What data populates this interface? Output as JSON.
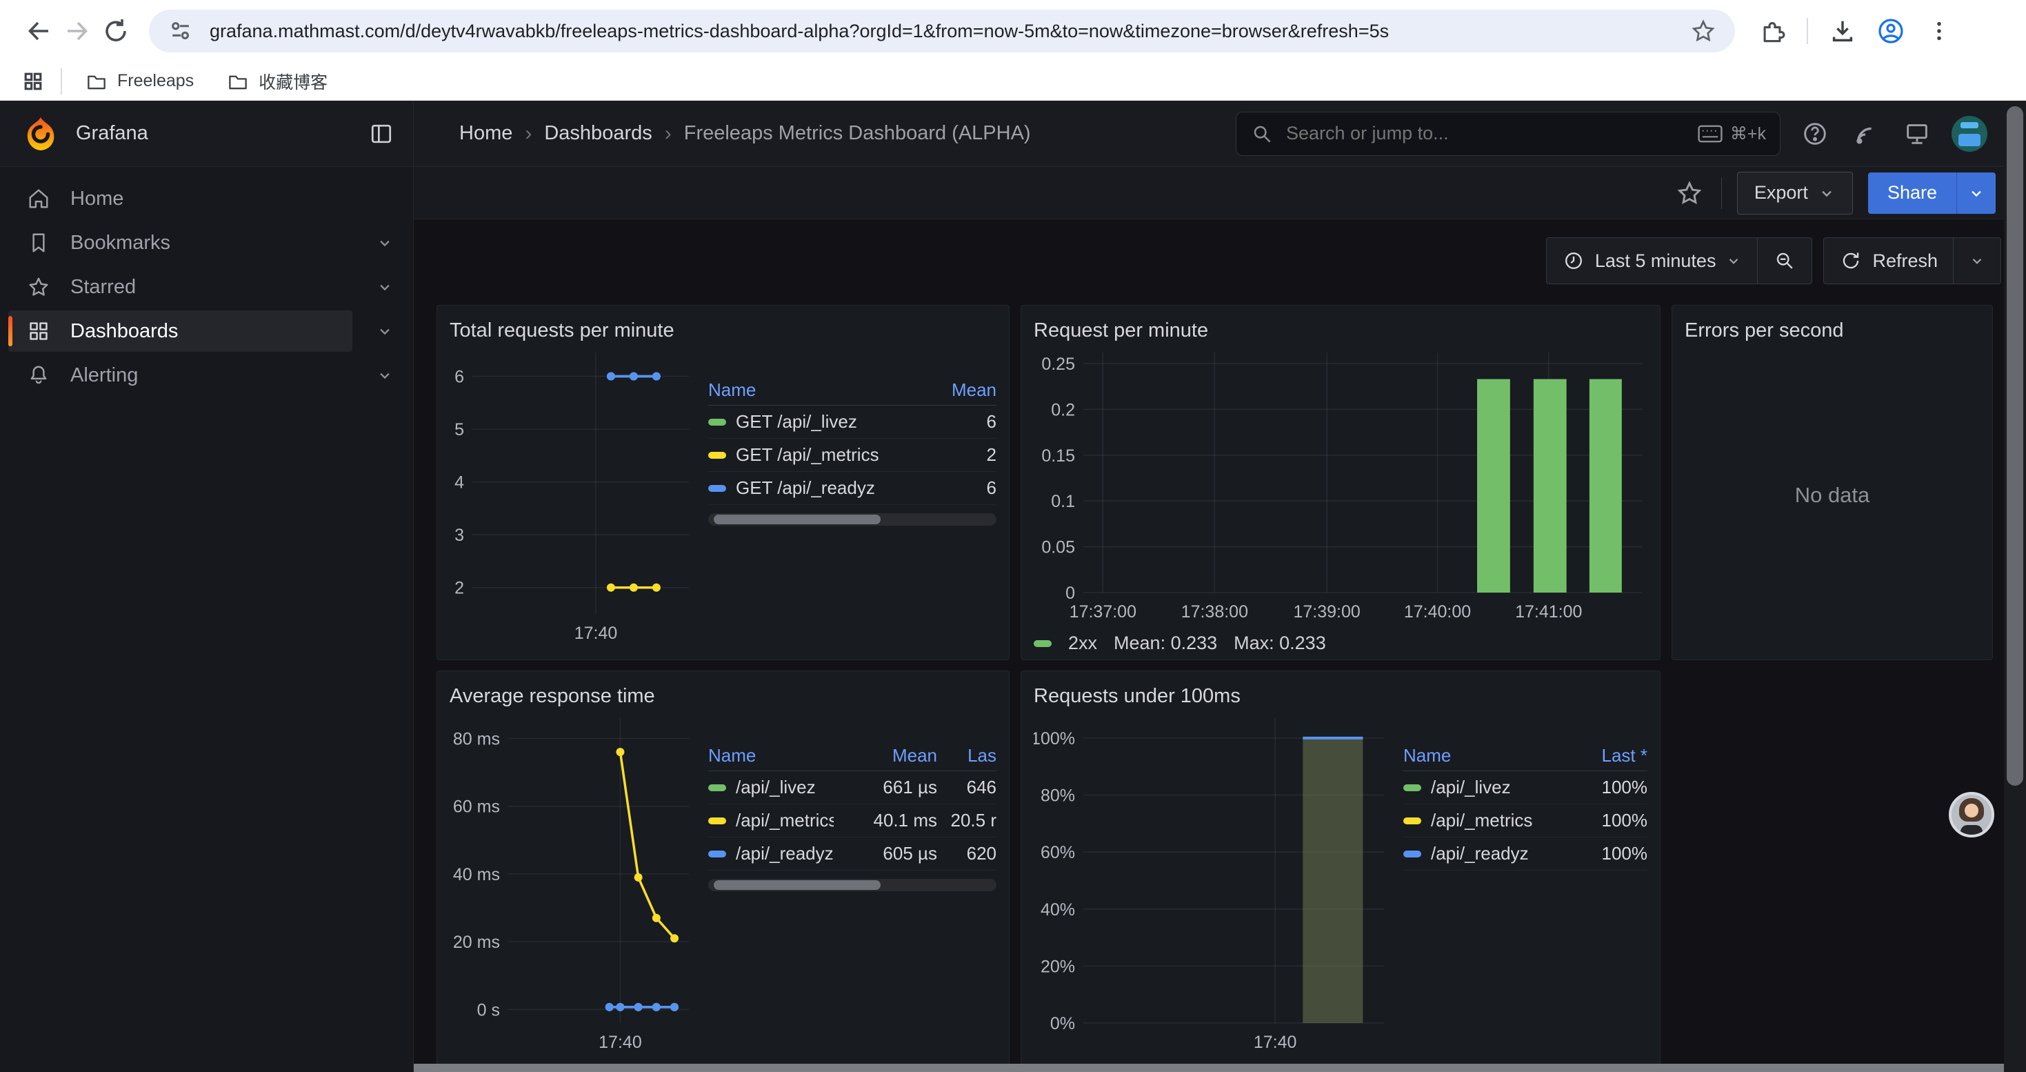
{
  "browser": {
    "url": "grafana.mathmast.com/d/deytv4rwavabkb/freeleaps-metrics-dashboard-alpha?orgId=1&from=now-5m&to=now&timezone=browser&refresh=5s",
    "bookmarks": [
      "Freeleaps",
      "收藏博客"
    ]
  },
  "header": {
    "brand": "Grafana",
    "breadcrumb": [
      "Home",
      "Dashboards",
      "Freeleaps Metrics Dashboard (ALPHA)"
    ],
    "search_placeholder": "Search or jump to...",
    "search_shortcut": "⌘+k",
    "export_label": "Export",
    "share_label": "Share"
  },
  "toolbar": {
    "time_range": "Last 5 minutes",
    "refresh_label": "Refresh"
  },
  "sidebar": {
    "items": [
      {
        "label": "Home",
        "icon": "home",
        "expandable": false,
        "active": false
      },
      {
        "label": "Bookmarks",
        "icon": "bookmark",
        "expandable": true,
        "active": false
      },
      {
        "label": "Starred",
        "icon": "star",
        "expandable": true,
        "active": false
      },
      {
        "label": "Dashboards",
        "icon": "grid",
        "expandable": true,
        "active": true
      },
      {
        "label": "Alerting",
        "icon": "bell",
        "expandable": true,
        "active": false
      }
    ]
  },
  "colors": {
    "green": "#73BF69",
    "yellow": "#FADE2A",
    "blue": "#5794F2",
    "accent": "#3D71D9",
    "link": "#6E9FFF"
  },
  "panels": [
    {
      "title": "Total requests per minute",
      "chart": {
        "type": "line",
        "ylim": [
          1.5,
          6.45
        ],
        "yticks": [
          {
            "label": "6",
            "v": 6
          },
          {
            "label": "5",
            "v": 5
          },
          {
            "label": "4",
            "v": 4
          },
          {
            "label": "3",
            "v": 3
          },
          {
            "label": "2",
            "v": 2
          }
        ],
        "xticks": [
          {
            "label": "17:40",
            "pos": 0.57,
            "grid": true
          }
        ],
        "series": [
          {
            "name": "GET /api/_livez",
            "color": "#73BF69",
            "points": [
              [
                0.64,
                6
              ],
              [
                0.745,
                6
              ],
              [
                0.85,
                6
              ]
            ]
          },
          {
            "name": "GET /api/_metrics",
            "color": "#FADE2A",
            "points": [
              [
                0.64,
                2
              ],
              [
                0.745,
                2
              ],
              [
                0.85,
                2
              ]
            ]
          },
          {
            "name": "GET /api/_readyz",
            "color": "#5794F2",
            "points": [
              [
                0.64,
                6
              ],
              [
                0.745,
                6
              ],
              [
                0.85,
                6
              ]
            ]
          }
        ]
      },
      "legend": {
        "columns": [
          "Name",
          "Mean"
        ],
        "scrollbar": true,
        "rows": [
          {
            "color": "#73BF69",
            "name": "GET /api/_livez",
            "values": [
              "6"
            ]
          },
          {
            "color": "#FADE2A",
            "name": "GET /api/_metrics",
            "values": [
              "2"
            ]
          },
          {
            "color": "#5794F2",
            "name": "GET /api/_readyz",
            "values": [
              "6"
            ]
          }
        ]
      }
    },
    {
      "title": "Request per minute",
      "chart": {
        "type": "bars",
        "ylim": [
          0,
          0.262
        ],
        "bar_color": "#73BF69",
        "yticks": [
          {
            "label": "0.25",
            "v": 0.25
          },
          {
            "label": "0.2",
            "v": 0.2
          },
          {
            "label": "0.15",
            "v": 0.15
          },
          {
            "label": "0.1",
            "v": 0.1
          },
          {
            "label": "0.05",
            "v": 0.05
          },
          {
            "label": "0",
            "v": 0
          }
        ],
        "xticks": [
          {
            "label": "17:37:00",
            "pos": 0.035,
            "grid": true
          },
          {
            "label": "17:38:00",
            "pos": 0.235,
            "grid": true
          },
          {
            "label": "17:39:00",
            "pos": 0.436,
            "grid": true
          },
          {
            "label": "17:40:00",
            "pos": 0.634,
            "grid": true
          },
          {
            "label": "17:41:00",
            "pos": 0.833,
            "grid": true
          }
        ],
        "bars": [
          {
            "x0": 0.705,
            "x1": 0.764,
            "v": 0.233
          },
          {
            "x0": 0.806,
            "x1": 0.865,
            "v": 0.233
          },
          {
            "x0": 0.906,
            "x1": 0.964,
            "v": 0.233
          }
        ]
      },
      "legend_inline": {
        "series": "2xx",
        "mean": "Mean: 0.233",
        "max": "Max: 0.233"
      }
    },
    {
      "title": "Errors per second",
      "no_data": "No data"
    },
    {
      "title": "Average response time",
      "chart": {
        "type": "line",
        "ylim": [
          -4,
          86
        ],
        "yticks": [
          {
            "label": "80 ms",
            "v": 80
          },
          {
            "label": "60 ms",
            "v": 60
          },
          {
            "label": "40 ms",
            "v": 40
          },
          {
            "label": "20 ms",
            "v": 20
          },
          {
            "label": "0 s",
            "v": 0
          }
        ],
        "xticks": [
          {
            "label": "17:40",
            "pos": 0.62,
            "grid": true
          }
        ],
        "series": [
          {
            "name": "/api/_livez",
            "color": "#73BF69",
            "points": [
              [
                0.56,
                0.7
              ],
              [
                0.62,
                0.7
              ],
              [
                0.72,
                0.7
              ],
              [
                0.82,
                0.7
              ],
              [
                0.92,
                0.7
              ]
            ]
          },
          {
            "name": "/api/_metrics",
            "color": "#FADE2A",
            "points": [
              [
                0.62,
                76
              ],
              [
                0.72,
                39
              ],
              [
                0.82,
                27
              ],
              [
                0.92,
                21
              ]
            ]
          },
          {
            "name": "/api/_readyz",
            "color": "#5794F2",
            "points": [
              [
                0.56,
                0.7
              ],
              [
                0.62,
                0.7
              ],
              [
                0.72,
                0.7
              ],
              [
                0.82,
                0.7
              ],
              [
                0.92,
                0.7
              ]
            ]
          }
        ]
      },
      "legend": {
        "columns": [
          "Name",
          "Mean",
          "Las"
        ],
        "scrollbar": true,
        "rows": [
          {
            "color": "#73BF69",
            "name": "/api/_livez",
            "values": [
              "661 µs",
              "646"
            ]
          },
          {
            "color": "#FADE2A",
            "name": "/api/_metrics",
            "values": [
              "40.1 ms",
              "20.5 r"
            ]
          },
          {
            "color": "#5794F2",
            "name": "/api/_readyz",
            "values": [
              "605 µs",
              "620"
            ]
          }
        ]
      }
    },
    {
      "title": "Requests under 100ms",
      "chart": {
        "type": "bars",
        "ylim": [
          0,
          107
        ],
        "yticks": [
          {
            "label": "100%",
            "v": 100
          },
          {
            "label": "80%",
            "v": 80
          },
          {
            "label": "60%",
            "v": 60
          },
          {
            "label": "40%",
            "v": 40
          },
          {
            "label": "20%",
            "v": 20
          },
          {
            "label": "0%",
            "v": 0
          }
        ],
        "xticks": [
          {
            "label": "17:40",
            "pos": 0.638,
            "grid": true
          }
        ],
        "bars": [
          {
            "x0": 0.73,
            "x1": 0.93,
            "v": 100,
            "fill": "rgba(136,148,96,0.42)",
            "top": "#5794F2"
          }
        ]
      },
      "legend": {
        "columns": [
          "Name",
          "Last *"
        ],
        "scrollbar": false,
        "rows": [
          {
            "color": "#73BF69",
            "name": "/api/_livez",
            "values": [
              "100%"
            ]
          },
          {
            "color": "#FADE2A",
            "name": "/api/_metrics",
            "values": [
              "100%"
            ]
          },
          {
            "color": "#5794F2",
            "name": "/api/_readyz",
            "values": [
              "100%"
            ]
          }
        ]
      }
    }
  ]
}
